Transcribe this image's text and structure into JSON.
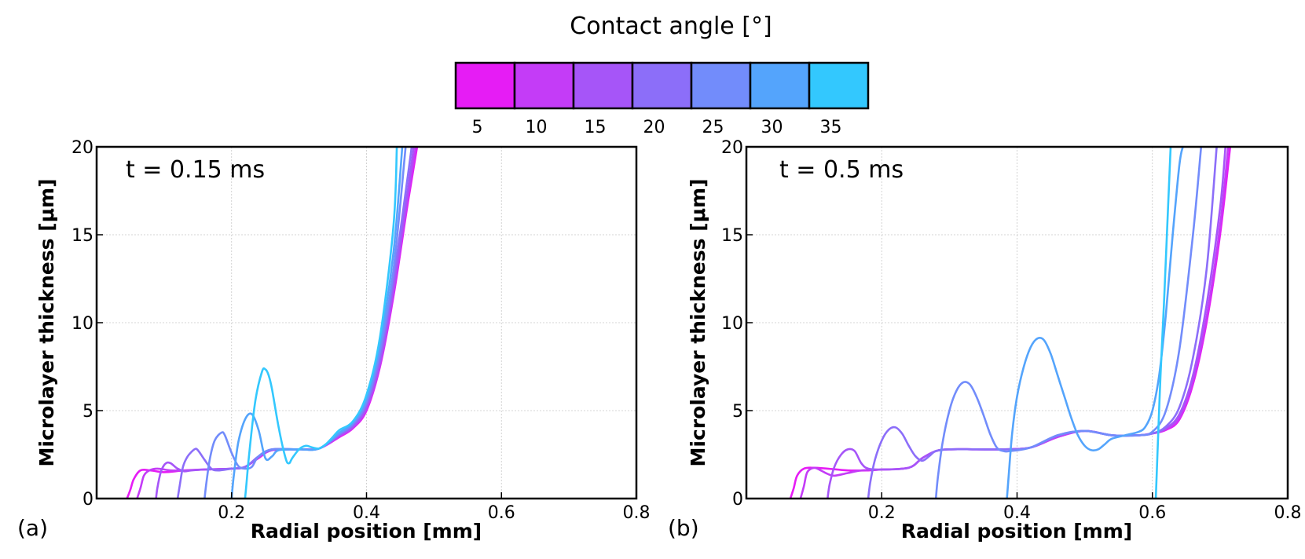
{
  "figure": {
    "colorbar": {
      "title": "Contact angle [°]",
      "labels": [
        "5",
        "10",
        "15",
        "20",
        "25",
        "30",
        "35"
      ],
      "colors": [
        "#e61cf5",
        "#c43cf7",
        "#a655f8",
        "#8c6ef9",
        "#728cfb",
        "#54a4fc",
        "#33c8fe"
      ]
    },
    "panel_tags": [
      "(a)",
      "(b)"
    ]
  },
  "chart_data": [
    {
      "type": "line",
      "title": "t = 0.15 ms",
      "xlabel": "Radial position [mm]",
      "ylabel": "Microlayer thickness [μm]",
      "xlim": [
        0,
        0.8
      ],
      "ylim": [
        0,
        20
      ],
      "xticks": [
        0.2,
        0.4,
        0.6,
        0.8
      ],
      "xtick_labels": [
        "0.2",
        "0.4",
        "0.6",
        "0.8"
      ],
      "yticks": [
        0,
        5,
        10,
        15,
        20
      ],
      "ytick_labels": [
        "0",
        "5",
        "10",
        "15",
        "20"
      ],
      "grid": true,
      "series": [
        {
          "name": "5",
          "color": "#e61cf5",
          "x": [
            0.045,
            0.05,
            0.055,
            0.065,
            0.08,
            0.1,
            0.13,
            0.16,
            0.2,
            0.22,
            0.24,
            0.26,
            0.3,
            0.33,
            0.36,
            0.38,
            0.4,
            0.42,
            0.44,
            0.46,
            0.475
          ],
          "y": [
            0,
            0.5,
            1.1,
            1.6,
            1.6,
            1.5,
            1.6,
            1.65,
            1.7,
            1.8,
            2.3,
            2.75,
            2.8,
            2.85,
            3.5,
            4.0,
            5.0,
            7.5,
            11.5,
            16.5,
            20
          ]
        },
        {
          "name": "10",
          "color": "#c43cf7",
          "x": [
            0.06,
            0.065,
            0.07,
            0.078,
            0.09,
            0.11,
            0.13,
            0.16,
            0.2,
            0.22,
            0.24,
            0.26,
            0.3,
            0.33,
            0.36,
            0.38,
            0.4,
            0.42,
            0.44,
            0.46,
            0.473
          ],
          "y": [
            0,
            0.6,
            1.3,
            1.6,
            1.7,
            1.6,
            1.6,
            1.65,
            1.7,
            1.8,
            2.35,
            2.75,
            2.8,
            2.85,
            3.55,
            4.05,
            5.1,
            7.6,
            11.7,
            16.8,
            20
          ]
        },
        {
          "name": "15",
          "color": "#a655f8",
          "x": [
            0.088,
            0.09,
            0.095,
            0.1,
            0.105,
            0.11,
            0.115,
            0.12,
            0.13,
            0.14,
            0.16,
            0.2,
            0.22,
            0.24,
            0.26,
            0.3,
            0.33,
            0.36,
            0.38,
            0.4,
            0.42,
            0.44,
            0.46,
            0.47
          ],
          "y": [
            0,
            0.6,
            1.5,
            1.9,
            2.05,
            2.0,
            1.85,
            1.7,
            1.55,
            1.6,
            1.65,
            1.7,
            1.8,
            2.35,
            2.75,
            2.8,
            2.85,
            3.6,
            4.1,
            5.2,
            7.8,
            12.0,
            17.2,
            20
          ]
        },
        {
          "name": "20",
          "color": "#8c6ef9",
          "x": [
            0.12,
            0.123,
            0.128,
            0.135,
            0.145,
            0.15,
            0.16,
            0.17,
            0.18,
            0.2,
            0.22,
            0.24,
            0.26,
            0.3,
            0.33,
            0.36,
            0.38,
            0.4,
            0.42,
            0.44,
            0.46,
            0.467
          ],
          "y": [
            0,
            0.7,
            1.8,
            2.4,
            2.8,
            2.75,
            2.2,
            1.7,
            1.6,
            1.7,
            1.8,
            2.4,
            2.8,
            2.8,
            2.85,
            3.65,
            4.2,
            5.4,
            8.1,
            12.5,
            18.0,
            20
          ]
        },
        {
          "name": "25",
          "color": "#728cfb",
          "x": [
            0.16,
            0.163,
            0.168,
            0.175,
            0.185,
            0.19,
            0.2,
            0.21,
            0.22,
            0.23,
            0.24,
            0.26,
            0.3,
            0.33,
            0.36,
            0.38,
            0.4,
            0.42,
            0.44,
            0.458
          ],
          "y": [
            0,
            1.0,
            2.3,
            3.3,
            3.75,
            3.6,
            2.6,
            1.85,
            1.7,
            1.8,
            2.4,
            2.8,
            2.8,
            2.85,
            3.7,
            4.25,
            5.5,
            8.4,
            13.0,
            20
          ]
        },
        {
          "name": "30",
          "color": "#54a4fc",
          "x": [
            0.2,
            0.203,
            0.21,
            0.22,
            0.23,
            0.24,
            0.25,
            0.26,
            0.27,
            0.3,
            0.33,
            0.36,
            0.38,
            0.4,
            0.42,
            0.44,
            0.453
          ],
          "y": [
            0,
            1.2,
            3.2,
            4.5,
            4.8,
            3.9,
            2.3,
            2.4,
            2.75,
            2.8,
            2.85,
            3.75,
            4.35,
            5.7,
            8.8,
            14.0,
            20
          ]
        },
        {
          "name": "35",
          "color": "#33c8fe",
          "x": [
            0.22,
            0.222,
            0.226,
            0.235,
            0.245,
            0.25,
            0.255,
            0.26,
            0.27,
            0.28,
            0.285,
            0.29,
            0.3,
            0.31,
            0.32,
            0.33,
            0.34,
            0.35,
            0.36,
            0.38,
            0.4,
            0.42,
            0.44,
            0.445
          ],
          "y": [
            0,
            0.8,
            2.5,
            5.5,
            7.2,
            7.35,
            7.0,
            6.2,
            4.0,
            2.3,
            2.0,
            2.3,
            2.8,
            3.0,
            2.9,
            2.85,
            3.1,
            3.5,
            3.9,
            4.4,
            5.9,
            9.2,
            15.5,
            20
          ]
        }
      ]
    },
    {
      "type": "line",
      "title": "t = 0.5 ms",
      "xlabel": "Radial position [mm]",
      "ylabel": "Microlayer thickness [μm]",
      "xlim": [
        0,
        0.8
      ],
      "ylim": [
        0,
        20
      ],
      "xticks": [
        0.2,
        0.4,
        0.6,
        0.8
      ],
      "xtick_labels": [
        "0.2",
        "0.4",
        "0.6",
        "0.8"
      ],
      "yticks": [
        0,
        5,
        10,
        15,
        20
      ],
      "ytick_labels": [
        "0",
        "5",
        "10",
        "15",
        "20"
      ],
      "grid": true,
      "series": [
        {
          "name": "5",
          "color": "#e61cf5",
          "x": [
            0.065,
            0.07,
            0.075,
            0.085,
            0.1,
            0.12,
            0.15,
            0.18,
            0.2,
            0.24,
            0.26,
            0.28,
            0.3,
            0.34,
            0.38,
            0.42,
            0.46,
            0.5,
            0.54,
            0.58,
            0.6,
            0.62,
            0.64,
            0.66,
            0.68,
            0.7,
            0.715
          ],
          "y": [
            0,
            0.6,
            1.3,
            1.7,
            1.75,
            1.7,
            1.6,
            1.6,
            1.65,
            1.75,
            2.3,
            2.7,
            2.8,
            2.8,
            2.8,
            2.9,
            3.5,
            3.85,
            3.6,
            3.6,
            3.7,
            3.9,
            4.5,
            6.5,
            10.0,
            15.0,
            20
          ]
        },
        {
          "name": "10",
          "color": "#c43cf7",
          "x": [
            0.08,
            0.085,
            0.09,
            0.1,
            0.11,
            0.12,
            0.13,
            0.15,
            0.17,
            0.2,
            0.24,
            0.26,
            0.28,
            0.3,
            0.34,
            0.38,
            0.42,
            0.46,
            0.5,
            0.54,
            0.58,
            0.6,
            0.62,
            0.64,
            0.66,
            0.68,
            0.7,
            0.712
          ],
          "y": [
            0,
            0.7,
            1.5,
            1.75,
            1.6,
            1.4,
            1.3,
            1.45,
            1.6,
            1.65,
            1.75,
            2.3,
            2.7,
            2.8,
            2.8,
            2.8,
            2.9,
            3.5,
            3.85,
            3.6,
            3.6,
            3.7,
            3.95,
            4.6,
            6.7,
            10.3,
            15.5,
            20
          ]
        },
        {
          "name": "15",
          "color": "#a655f8",
          "x": [
            0.12,
            0.123,
            0.13,
            0.14,
            0.15,
            0.16,
            0.17,
            0.18,
            0.2,
            0.24,
            0.26,
            0.28,
            0.3,
            0.34,
            0.38,
            0.42,
            0.46,
            0.5,
            0.54,
            0.58,
            0.6,
            0.62,
            0.64,
            0.66,
            0.68,
            0.7,
            0.708
          ],
          "y": [
            0,
            0.8,
            1.8,
            2.5,
            2.8,
            2.7,
            2.0,
            1.7,
            1.65,
            1.75,
            2.3,
            2.7,
            2.8,
            2.8,
            2.8,
            2.9,
            3.55,
            3.85,
            3.6,
            3.6,
            3.7,
            4.0,
            4.8,
            7.0,
            11.0,
            16.5,
            20
          ]
        },
        {
          "name": "20",
          "color": "#8c6ef9",
          "x": [
            0.18,
            0.183,
            0.19,
            0.2,
            0.21,
            0.22,
            0.23,
            0.24,
            0.25,
            0.26,
            0.27,
            0.28,
            0.3,
            0.34,
            0.38,
            0.42,
            0.46,
            0.5,
            0.54,
            0.58,
            0.6,
            0.62,
            0.64,
            0.66,
            0.68,
            0.695
          ],
          "y": [
            0,
            0.9,
            2.2,
            3.3,
            3.9,
            4.05,
            3.7,
            3.0,
            2.4,
            2.15,
            2.4,
            2.7,
            2.8,
            2.8,
            2.8,
            2.9,
            3.6,
            3.85,
            3.6,
            3.6,
            3.7,
            4.1,
            5.2,
            8.0,
            13.0,
            20
          ]
        },
        {
          "name": "25",
          "color": "#728cfb",
          "x": [
            0.28,
            0.283,
            0.29,
            0.3,
            0.31,
            0.32,
            0.33,
            0.34,
            0.35,
            0.36,
            0.37,
            0.38,
            0.39,
            0.42,
            0.46,
            0.5,
            0.54,
            0.58,
            0.6,
            0.62,
            0.64,
            0.66,
            0.672
          ],
          "y": [
            0,
            1.2,
            3.2,
            5.0,
            6.1,
            6.6,
            6.5,
            5.8,
            4.8,
            3.7,
            2.9,
            2.7,
            2.7,
            2.9,
            3.6,
            3.85,
            3.6,
            3.6,
            3.8,
            5.0,
            8.5,
            15.0,
            20
          ]
        },
        {
          "name": "30",
          "color": "#54a4fc",
          "x": [
            0.385,
            0.388,
            0.393,
            0.4,
            0.41,
            0.42,
            0.43,
            0.44,
            0.45,
            0.46,
            0.47,
            0.48,
            0.49,
            0.5,
            0.51,
            0.52,
            0.53,
            0.54,
            0.56,
            0.58,
            0.59,
            0.6,
            0.61,
            0.62,
            0.63,
            0.64,
            0.645
          ],
          "y": [
            0,
            1.5,
            3.8,
            5.8,
            7.5,
            8.6,
            9.1,
            9.0,
            8.2,
            7.0,
            5.8,
            4.6,
            3.6,
            3.0,
            2.75,
            2.8,
            3.1,
            3.4,
            3.6,
            3.8,
            4.1,
            5.0,
            7.0,
            10.5,
            15.0,
            19.0,
            20
          ]
        },
        {
          "name": "35",
          "color": "#33c8fe",
          "x": [
            0.605,
            0.608,
            0.612,
            0.617,
            0.622,
            0.627
          ],
          "y": [
            0,
            3.0,
            7.0,
            11.0,
            15.5,
            20
          ]
        }
      ]
    }
  ]
}
